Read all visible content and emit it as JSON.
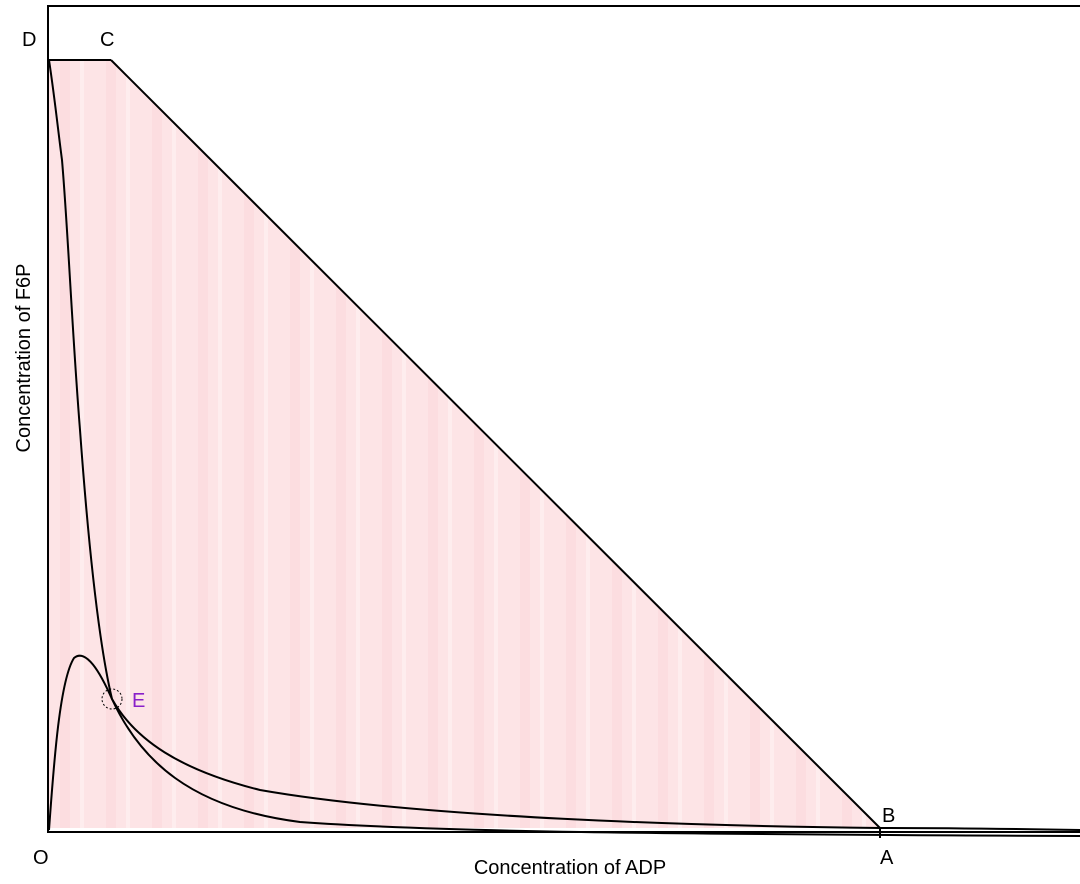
{
  "diagram": {
    "axis_x_label": "Concentration of ADP",
    "axis_y_label": "Concentration of F6P",
    "points": {
      "O": "O",
      "A": "A",
      "B": "B",
      "C": "C",
      "D": "D",
      "E": "E"
    },
    "colors": {
      "region_fill": "#fde4e6",
      "region_stripe": "#fbd3d8",
      "line": "#000000",
      "point_e_label": "#8a1fc9"
    }
  }
}
